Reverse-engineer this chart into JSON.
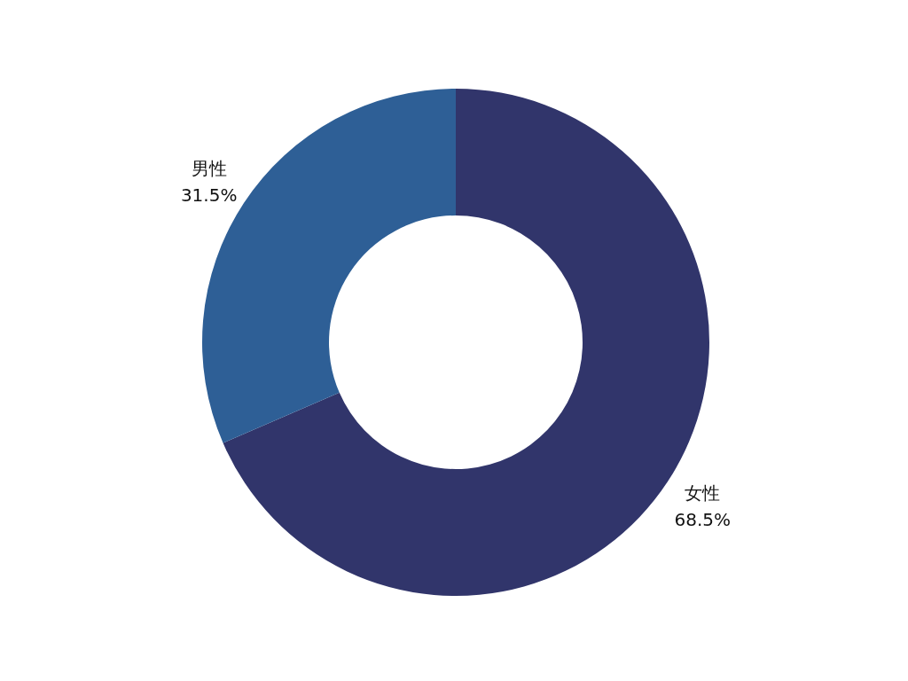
{
  "chart_data": {
    "type": "donut",
    "categories": [
      "女性",
      "男性"
    ],
    "values": [
      68.5,
      31.5
    ],
    "colors": [
      "#31356b",
      "#2e5f96"
    ],
    "value_labels": [
      "68.5%",
      "31.5%"
    ],
    "legend": false
  }
}
